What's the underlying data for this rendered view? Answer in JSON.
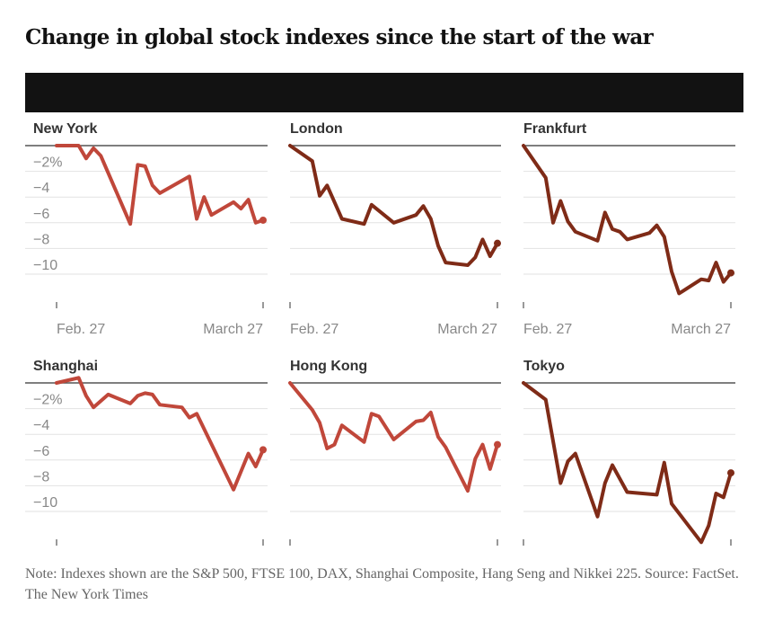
{
  "title": "Change in global stock indexes since the start of the war",
  "note": "Note: Indexes shown are the S&P 500, FTSE 100, DAX, Shanghai Composite, Hang Seng and Nikkei 225.  Source: FactSet.  The New York Times",
  "chart_data": [
    {
      "type": "line",
      "title": "New York",
      "ylabel": "%",
      "ylim": [
        -12,
        0
      ],
      "yticks": [
        "-2%",
        "-4",
        "-6",
        "-8",
        "-10"
      ],
      "xticks": [
        "Feb. 27",
        "March 27"
      ],
      "color": "#c0473a",
      "x": [
        0,
        3,
        4,
        5,
        6,
        10,
        11,
        12,
        13,
        14,
        18,
        19,
        20,
        21,
        24,
        25,
        26,
        27,
        28
      ],
      "values": [
        0,
        0,
        -1.0,
        -0.2,
        -0.8,
        -6.1,
        -1.5,
        -1.6,
        -3.1,
        -3.7,
        -2.4,
        -5.7,
        -4.0,
        -5.4,
        -4.4,
        -4.9,
        -4.2,
        -6.0,
        -5.8
      ]
    },
    {
      "type": "line",
      "title": "London",
      "ylim": [
        -12,
        0
      ],
      "yticks": [],
      "xticks": [
        "Feb. 27",
        "March 27"
      ],
      "color": "#7f2b17",
      "x": [
        0,
        3,
        4,
        5,
        7,
        10,
        11,
        14,
        17,
        18,
        19,
        20,
        21,
        24,
        25,
        26,
        27,
        28
      ],
      "values": [
        0,
        -1.2,
        -3.9,
        -3.1,
        -5.7,
        -6.1,
        -4.6,
        -6.0,
        -5.4,
        -4.7,
        -5.7,
        -7.8,
        -9.1,
        -9.3,
        -8.7,
        -7.3,
        -8.6,
        -7.6
      ]
    },
    {
      "type": "line",
      "title": "Frankfurt",
      "ylim": [
        -12,
        0
      ],
      "yticks": [],
      "xticks": [
        "Feb. 27",
        "March 27"
      ],
      "color": "#7f2b17",
      "x": [
        0,
        3,
        4,
        5,
        6,
        7,
        10,
        11,
        12,
        13,
        14,
        17,
        18,
        19,
        20,
        21,
        24,
        25,
        26,
        27,
        28
      ],
      "values": [
        0,
        -2.5,
        -6.0,
        -4.3,
        -5.9,
        -6.7,
        -7.4,
        -5.2,
        -6.5,
        -6.7,
        -7.3,
        -6.8,
        -6.2,
        -7.1,
        -9.8,
        -11.5,
        -10.4,
        -10.5,
        -9.1,
        -10.6,
        -9.9
      ]
    },
    {
      "type": "line",
      "title": "Shanghai",
      "ylim": [
        -12,
        0
      ],
      "yticks": [
        "-2%",
        "-4",
        "-6",
        "-8",
        "-10"
      ],
      "xticks": [
        "",
        ""
      ],
      "color": "#c0473a",
      "x": [
        0,
        3,
        4,
        5,
        7,
        10,
        11,
        12,
        13,
        14,
        17,
        18,
        19,
        24,
        26,
        27,
        28
      ],
      "values": [
        0,
        0.4,
        -1.0,
        -1.9,
        -0.9,
        -1.6,
        -1.0,
        -0.8,
        -0.9,
        -1.7,
        -1.9,
        -2.7,
        -2.4,
        -8.3,
        -5.5,
        -6.5,
        -5.2
      ]
    },
    {
      "type": "line",
      "title": "Hong Kong",
      "ylim": [
        -12,
        0
      ],
      "yticks": [],
      "xticks": [
        "",
        ""
      ],
      "color": "#c0473a",
      "x": [
        0,
        3,
        4,
        5,
        6,
        7,
        10,
        11,
        12,
        14,
        17,
        18,
        19,
        20,
        21,
        24,
        25,
        26,
        27,
        28
      ],
      "values": [
        0,
        -2.1,
        -3.1,
        -5.1,
        -4.8,
        -3.3,
        -4.6,
        -2.4,
        -2.6,
        -4.4,
        -3.0,
        -2.9,
        -2.3,
        -4.2,
        -5.0,
        -8.4,
        -5.9,
        -4.8,
        -6.7,
        -4.8
      ]
    },
    {
      "type": "line",
      "title": "Tokyo",
      "ylim": [
        -12,
        0
      ],
      "yticks": [],
      "xticks": [
        "",
        ""
      ],
      "color": "#7f2b17",
      "x": [
        0,
        3,
        5,
        6,
        7,
        10,
        11,
        12,
        14,
        18,
        19,
        20,
        24,
        25,
        26,
        27,
        28
      ],
      "values": [
        0,
        -1.3,
        -7.8,
        -6.1,
        -5.5,
        -10.4,
        -7.8,
        -6.4,
        -8.5,
        -8.7,
        -6.2,
        -9.4,
        -12.4,
        -11.1,
        -8.6,
        -8.9,
        -7.0
      ]
    }
  ]
}
